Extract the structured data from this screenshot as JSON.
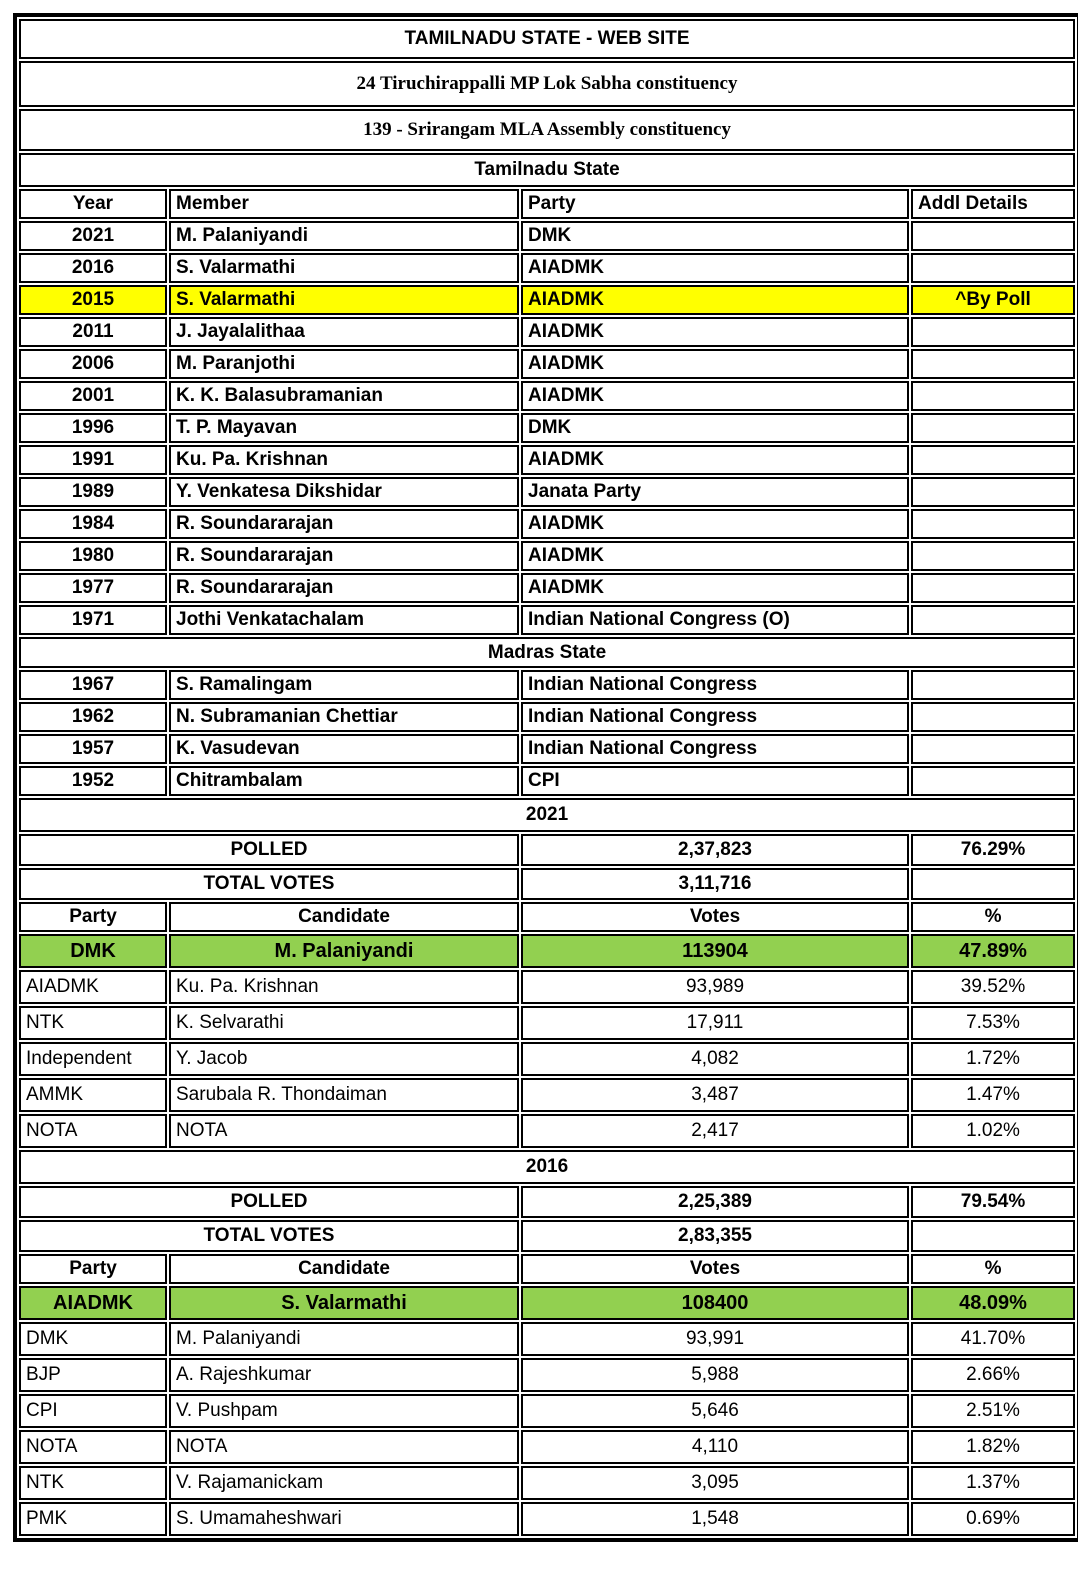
{
  "title_bar": {
    "site_title": "TAMILNADU STATE - WEB SITE",
    "mp_constituency": "24 Tiruchirappalli MP Lok Sabha constituency",
    "mla_constituency": "139 - Srirangam MLA Assembly constituency"
  },
  "colors": {
    "peach_header": "#F6C9A4",
    "highlight_yellow": "#FFFF00",
    "winner_green": "#92D050",
    "site_title_purple": "#7030A0",
    "border_black": "#000000"
  },
  "members": {
    "headers": [
      "Year",
      "Member",
      "Party",
      "Addl Details"
    ],
    "sections": [
      {
        "title": "Tamilnadu State",
        "rows": [
          {
            "year": "2021",
            "member": "M. Palaniyandi",
            "party": "DMK",
            "addl": "",
            "highlight": false
          },
          {
            "year": "2016",
            "member": "S. Valarmathi",
            "party": "AIADMK",
            "addl": "",
            "highlight": false
          },
          {
            "year": "2015",
            "member": "S. Valarmathi",
            "party": "AIADMK",
            "addl": "^By Poll",
            "highlight": true
          },
          {
            "year": "2011",
            "member": "J. Jayalalithaa",
            "party": "AIADMK",
            "addl": "",
            "highlight": false
          },
          {
            "year": "2006",
            "member": "M. Paranjothi",
            "party": "AIADMK",
            "addl": "",
            "highlight": false
          },
          {
            "year": "2001",
            "member": "K. K. Balasubramanian",
            "party": "AIADMK",
            "addl": "",
            "highlight": false
          },
          {
            "year": "1996",
            "member": "T. P. Mayavan",
            "party": "DMK",
            "addl": "",
            "highlight": false
          },
          {
            "year": "1991",
            "member": "Ku. Pa. Krishnan",
            "party": "AIADMK",
            "addl": "",
            "highlight": false
          },
          {
            "year": "1989",
            "member": "Y. Venkatesa Dikshidar",
            "party": "Janata Party",
            "addl": "",
            "highlight": false
          },
          {
            "year": "1984",
            "member": "R. Soundararajan",
            "party": "AIADMK",
            "addl": "",
            "highlight": false
          },
          {
            "year": "1980",
            "member": "R. Soundararajan",
            "party": "AIADMK",
            "addl": "",
            "highlight": false
          },
          {
            "year": "1977",
            "member": "R. Soundararajan",
            "party": "AIADMK",
            "addl": "",
            "highlight": false
          },
          {
            "year": "1971",
            "member": "Jothi Venkatachalam",
            "party": "Indian National Congress (O)",
            "addl": "",
            "highlight": false
          }
        ]
      },
      {
        "title": "Madras State",
        "rows": [
          {
            "year": "1967",
            "member": "S. Ramalingam",
            "party": "Indian National Congress",
            "addl": "",
            "highlight": false
          },
          {
            "year": "1962",
            "member": "N. Subramanian Chettiar",
            "party": "Indian National Congress",
            "addl": "",
            "highlight": false
          },
          {
            "year": "1957",
            "member": "K. Vasudevan",
            "party": "Indian National Congress",
            "addl": "",
            "highlight": false
          },
          {
            "year": "1952",
            "member": "Chitrambalam",
            "party": "CPI",
            "addl": "",
            "highlight": false
          }
        ]
      }
    ]
  },
  "elections": [
    {
      "year": "2021",
      "polled_label": "POLLED",
      "polled_votes": "2,37,823",
      "polled_pct": "76.29%",
      "total_label": "TOTAL VOTES",
      "total_votes": "3,11,716",
      "headers": [
        "Party",
        "Candidate",
        "Votes",
        "%"
      ],
      "rows": [
        {
          "party": "DMK",
          "candidate": "M. Palaniyandi",
          "votes": "113904",
          "pct": "47.89%",
          "winner": true
        },
        {
          "party": "AIADMK",
          "candidate": "Ku. Pa. Krishnan",
          "votes": "93,989",
          "pct": "39.52%",
          "winner": false
        },
        {
          "party": "NTK",
          "candidate": "K. Selvarathi",
          "votes": "17,911",
          "pct": "7.53%",
          "winner": false
        },
        {
          "party": "Independent",
          "candidate": "Y. Jacob",
          "votes": "4,082",
          "pct": "1.72%",
          "winner": false
        },
        {
          "party": "AMMK",
          "candidate": "Sarubala R. Thondaiman",
          "votes": "3,487",
          "pct": "1.47%",
          "winner": false
        },
        {
          "party": "NOTA",
          "candidate": "NOTA",
          "votes": "2,417",
          "pct": "1.02%",
          "winner": false
        }
      ]
    },
    {
      "year": "2016",
      "polled_label": "POLLED",
      "polled_votes": "2,25,389",
      "polled_pct": "79.54%",
      "total_label": "TOTAL VOTES",
      "total_votes": "2,83,355",
      "headers": [
        "Party",
        "Candidate",
        "Votes",
        "%"
      ],
      "rows": [
        {
          "party": "AIADMK",
          "candidate": "S. Valarmathi",
          "votes": "108400",
          "pct": "48.09%",
          "winner": true
        },
        {
          "party": "DMK",
          "candidate": "M. Palaniyandi",
          "votes": "93,991",
          "pct": "41.70%",
          "winner": false
        },
        {
          "party": "BJP",
          "candidate": "A. Rajeshkumar",
          "votes": "5,988",
          "pct": "2.66%",
          "winner": false
        },
        {
          "party": "CPI",
          "candidate": "V. Pushpam",
          "votes": "5,646",
          "pct": "2.51%",
          "winner": false
        },
        {
          "party": "NOTA",
          "candidate": "NOTA",
          "votes": "4,110",
          "pct": "1.82%",
          "winner": false
        },
        {
          "party": "NTK",
          "candidate": "V. Rajamanickam",
          "votes": "3,095",
          "pct": "1.37%",
          "winner": false
        },
        {
          "party": "PMK",
          "candidate": "S. Umamaheshwari",
          "votes": "1,548",
          "pct": "0.69%",
          "winner": false
        }
      ]
    }
  ]
}
